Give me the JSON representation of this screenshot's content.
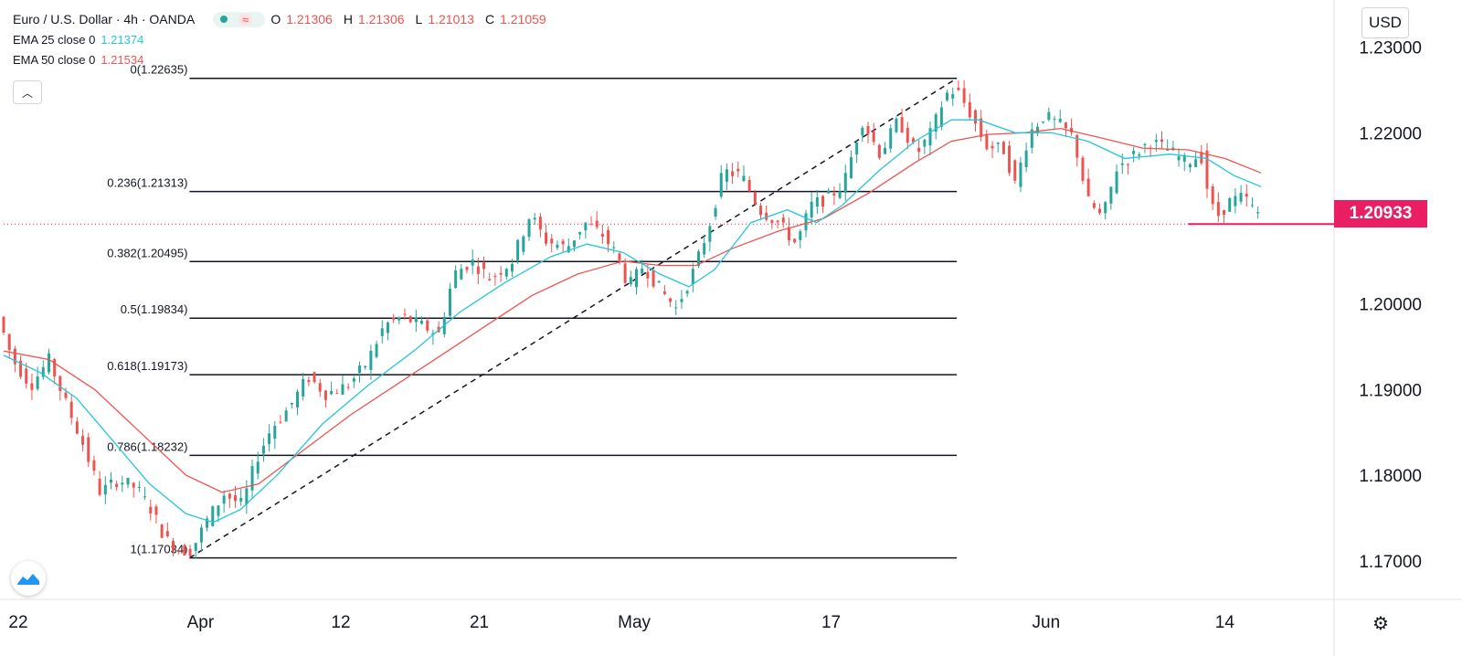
{
  "header": {
    "symbol": "Euro / U.S. Dollar",
    "interval": "4h",
    "exchange": "OANDA",
    "title": "Euro / U.S. Dollar · 4h · OANDA",
    "ohlc": [
      {
        "k": "O",
        "v": "1.21306"
      },
      {
        "k": "H",
        "v": "1.21306"
      },
      {
        "k": "L",
        "v": "1.21013"
      },
      {
        "k": "C",
        "v": "1.21059"
      }
    ]
  },
  "indicators": [
    {
      "label": "EMA 25 close 0",
      "value": "1.21374",
      "color": "#26c6da"
    },
    {
      "label": "EMA 50 close 0",
      "value": "1.21534",
      "color": "#ef5350"
    }
  ],
  "currency": "USD",
  "last_price": "1.20933",
  "colors": {
    "up": "#26a69a",
    "down": "#ef5350",
    "ema25": "#26c6da",
    "ema50": "#ef5350",
    "badge": "#e91e63",
    "grid": "#000000"
  },
  "chart_data": {
    "type": "candlestick",
    "title": "Euro / U.S. Dollar, 4h, OANDA",
    "ylim": [
      1.1655,
      1.2355
    ],
    "y_ticks": [
      "1.17000",
      "1.18000",
      "1.19000",
      "1.20000",
      "1.22000",
      "1.23000"
    ],
    "x_ticks": [
      {
        "label": "22",
        "t": 8
      },
      {
        "label": "Apr",
        "t": 108
      },
      {
        "label": "12",
        "t": 185
      },
      {
        "label": "21",
        "t": 261
      },
      {
        "label": "May",
        "t": 346
      },
      {
        "label": "17",
        "t": 454
      },
      {
        "label": "Jun",
        "t": 572
      },
      {
        "label": "14",
        "t": 670
      }
    ],
    "t_range": [
      0,
      730
    ],
    "fibonacci": {
      "t_start": 102,
      "t_end": 523,
      "levels": [
        {
          "label": "0(1.22635)",
          "value": 1.22635
        },
        {
          "label": "0.236(1.21313)",
          "value": 1.21313
        },
        {
          "label": "0.382(1.20495)",
          "value": 1.20495
        },
        {
          "label": "0.5(1.19834)",
          "value": 1.19834
        },
        {
          "label": "0.618(1.19173)",
          "value": 1.19173
        },
        {
          "label": "0.786(1.18232)",
          "value": 1.18232
        },
        {
          "label": "1(1.17034)",
          "value": 1.17034
        }
      ]
    },
    "trendline": {
      "t1": 102,
      "v1": 1.17034,
      "t2": 523,
      "v2": 1.22635
    },
    "support_line": {
      "t1": 650,
      "t2": 730,
      "value": 1.20933
    },
    "last_price_value": 1.20933,
    "price_path": [
      [
        0,
        1.1985
      ],
      [
        8,
        1.1935
      ],
      [
        18,
        1.1905
      ],
      [
        28,
        1.1935
      ],
      [
        36,
        1.189
      ],
      [
        46,
        1.184
      ],
      [
        56,
        1.178
      ],
      [
        66,
        1.1795
      ],
      [
        76,
        1.1785
      ],
      [
        84,
        1.176
      ],
      [
        92,
        1.1725
      ],
      [
        100,
        1.1712
      ],
      [
        106,
        1.1712
      ],
      [
        114,
        1.1745
      ],
      [
        124,
        1.1778
      ],
      [
        134,
        1.1765
      ],
      [
        142,
        1.182
      ],
      [
        150,
        1.1855
      ],
      [
        160,
        1.188
      ],
      [
        170,
        1.1915
      ],
      [
        180,
        1.1895
      ],
      [
        192,
        1.1905
      ],
      [
        202,
        1.193
      ],
      [
        212,
        1.1975
      ],
      [
        222,
        1.1985
      ],
      [
        232,
        1.1975
      ],
      [
        242,
        1.1965
      ],
      [
        250,
        1.2035
      ],
      [
        260,
        1.205
      ],
      [
        270,
        1.203
      ],
      [
        282,
        1.205
      ],
      [
        292,
        1.2105
      ],
      [
        300,
        1.2075
      ],
      [
        312,
        1.2065
      ],
      [
        322,
        1.2095
      ],
      [
        332,
        1.208
      ],
      [
        340,
        1.2055
      ],
      [
        346,
        1.202
      ],
      [
        354,
        1.2045
      ],
      [
        364,
        1.2015
      ],
      [
        372,
        1.1995
      ],
      [
        382,
        1.204
      ],
      [
        390,
        1.209
      ],
      [
        398,
        1.2155
      ],
      [
        408,
        1.215
      ],
      [
        418,
        1.211
      ],
      [
        428,
        1.2095
      ],
      [
        438,
        1.207
      ],
      [
        446,
        1.2115
      ],
      [
        456,
        1.2125
      ],
      [
        464,
        1.214
      ],
      [
        474,
        1.2215
      ],
      [
        484,
        1.2175
      ],
      [
        494,
        1.2215
      ],
      [
        504,
        1.2175
      ],
      [
        512,
        1.22
      ],
      [
        520,
        1.2245
      ],
      [
        526,
        1.225
      ],
      [
        534,
        1.222
      ],
      [
        542,
        1.2185
      ],
      [
        552,
        1.218
      ],
      [
        558,
        1.214
      ],
      [
        566,
        1.22
      ],
      [
        574,
        1.222
      ],
      [
        582,
        1.221
      ],
      [
        590,
        1.2195
      ],
      [
        598,
        1.212
      ],
      [
        606,
        1.21
      ],
      [
        614,
        1.216
      ],
      [
        624,
        1.2175
      ],
      [
        632,
        1.219
      ],
      [
        642,
        1.218
      ],
      [
        652,
        1.2165
      ],
      [
        660,
        1.2175
      ],
      [
        664,
        1.213
      ],
      [
        668,
        1.21
      ],
      [
        676,
        1.212
      ],
      [
        684,
        1.2125
      ],
      [
        690,
        1.2106
      ]
    ],
    "ema25_path": [
      [
        0,
        1.194
      ],
      [
        20,
        1.192
      ],
      [
        40,
        1.189
      ],
      [
        60,
        1.184
      ],
      [
        80,
        1.179
      ],
      [
        100,
        1.1755
      ],
      [
        115,
        1.1745
      ],
      [
        130,
        1.176
      ],
      [
        150,
        1.18
      ],
      [
        175,
        1.186
      ],
      [
        200,
        1.1905
      ],
      [
        225,
        1.1945
      ],
      [
        250,
        1.199
      ],
      [
        275,
        1.2025
      ],
      [
        300,
        1.2055
      ],
      [
        320,
        1.207
      ],
      [
        340,
        1.206
      ],
      [
        360,
        1.2035
      ],
      [
        376,
        1.202
      ],
      [
        390,
        1.204
      ],
      [
        410,
        1.2095
      ],
      [
        430,
        1.211
      ],
      [
        446,
        1.2095
      ],
      [
        460,
        1.2115
      ],
      [
        480,
        1.2155
      ],
      [
        500,
        1.219
      ],
      [
        520,
        1.2215
      ],
      [
        535,
        1.2215
      ],
      [
        555,
        1.22
      ],
      [
        575,
        1.22
      ],
      [
        595,
        1.219
      ],
      [
        615,
        1.217
      ],
      [
        640,
        1.2175
      ],
      [
        660,
        1.217
      ],
      [
        675,
        1.215
      ],
      [
        690,
        1.2137
      ]
    ],
    "ema50_path": [
      [
        0,
        1.1945
      ],
      [
        25,
        1.1935
      ],
      [
        50,
        1.19
      ],
      [
        75,
        1.185
      ],
      [
        100,
        1.18
      ],
      [
        120,
        1.178
      ],
      [
        140,
        1.179
      ],
      [
        165,
        1.183
      ],
      [
        190,
        1.187
      ],
      [
        215,
        1.1905
      ],
      [
        240,
        1.194
      ],
      [
        265,
        1.1975
      ],
      [
        290,
        1.201
      ],
      [
        315,
        1.2035
      ],
      [
        340,
        1.205
      ],
      [
        360,
        1.2045
      ],
      [
        380,
        1.2045
      ],
      [
        400,
        1.2065
      ],
      [
        425,
        1.2085
      ],
      [
        450,
        1.21
      ],
      [
        475,
        1.213
      ],
      [
        500,
        1.2165
      ],
      [
        520,
        1.219
      ],
      [
        540,
        1.2198
      ],
      [
        560,
        1.22
      ],
      [
        580,
        1.2205
      ],
      [
        600,
        1.2195
      ],
      [
        625,
        1.2182
      ],
      [
        650,
        1.218
      ],
      [
        670,
        1.217
      ],
      [
        690,
        1.2153
      ]
    ]
  }
}
